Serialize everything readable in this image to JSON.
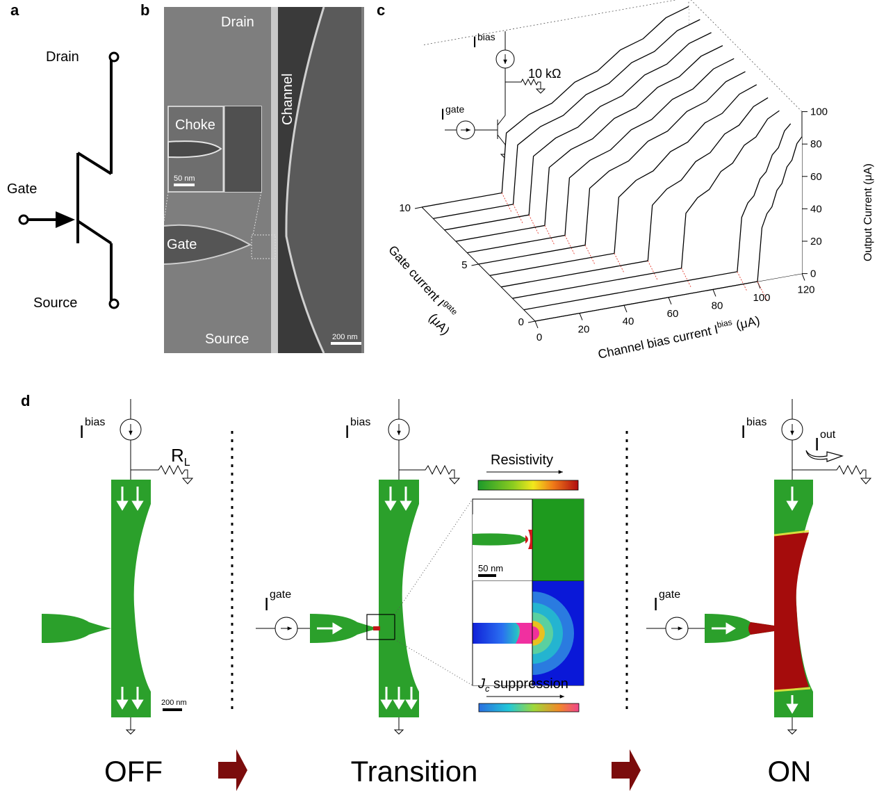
{
  "panels": {
    "a": "a",
    "b": "b",
    "c": "c",
    "d": "d"
  },
  "panel_a": {
    "drain": "Drain",
    "gate": "Gate",
    "source": "Source"
  },
  "panel_b": {
    "drain": "Drain",
    "channel": "Channel",
    "choke": "Choke",
    "scale_inset": "50 nm",
    "gate": "Gate",
    "source": "Source",
    "scale": "200 nm"
  },
  "panel_c": {
    "bias_base": "I",
    "bias_sup": "bias",
    "resistor": "10 kΩ",
    "gate_base": "I",
    "gate_sup": "gate",
    "x_label_pre": "Channel bias current I",
    "x_label_sup": "bias",
    "x_label_post": " (μA)",
    "y_label_pre": "Gate current I",
    "y_label_sup": "gate",
    "y_label_post": "(μA)",
    "z_label": "Output Current  (μA)"
  },
  "panel_d": {
    "bias_base": "I",
    "bias_sup": "bias",
    "gate_base": "I",
    "gate_sup": "gate",
    "out_base": "I",
    "out_sup": "out",
    "rl_base": "R",
    "rl_sub": "L",
    "scale": "200 nm",
    "resistivity": "Resistivity",
    "jc_base": "J",
    "jc_sub": "c",
    "jc_rest": " suppression",
    "inset_scale": "50 nm",
    "state_off": "OFF",
    "state_transition": "Transition",
    "state_on": "ON"
  },
  "colors": {
    "superconducting": "#2ca02c",
    "normal": "#a50c0c",
    "arrow": "#7b0c0c",
    "threshold": "#e23b2e"
  },
  "chart_data": {
    "type": "area",
    "x_axis": {
      "label": "Channel bias current Ibias (μA)",
      "ticks": [
        0,
        20,
        40,
        60,
        80,
        100,
        120
      ],
      "range": [
        0,
        120
      ]
    },
    "y_axis": {
      "label": "Gate current Igate (μA)",
      "ticks": [
        0,
        5,
        10
      ],
      "range": [
        0,
        10
      ]
    },
    "z_axis": {
      "label": "Output Current (μA)",
      "ticks": [
        0,
        20,
        40,
        60,
        80,
        100
      ],
      "range": [
        0,
        100
      ]
    },
    "series": [
      {
        "gate": 0,
        "switch": 100,
        "top": 86
      },
      {
        "gate": 1,
        "switch": 96,
        "top": 87
      },
      {
        "gate": 2,
        "switch": 76,
        "top": 88
      },
      {
        "gate": 3,
        "switch": 66,
        "top": 89
      },
      {
        "gate": 4,
        "switch": 56,
        "top": 90
      },
      {
        "gate": 5,
        "switch": 48,
        "top": 91
      },
      {
        "gate": 6,
        "switch": 44,
        "top": 92
      },
      {
        "gate": 7,
        "switch": 40,
        "top": 93
      },
      {
        "gate": 8,
        "switch": 38,
        "top": 94
      },
      {
        "gate": 9,
        "switch": 36,
        "top": 95
      },
      {
        "gate": 10,
        "switch": 36,
        "top": 96
      }
    ]
  }
}
